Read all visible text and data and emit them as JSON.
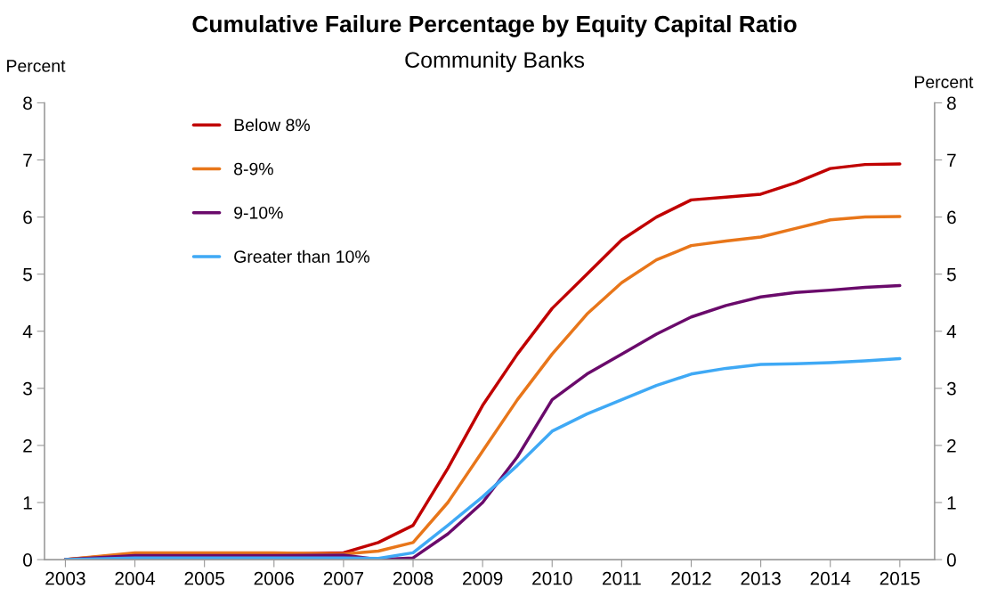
{
  "chart_data": {
    "type": "line",
    "title": "Cumulative Failure Percentage by Equity Capital Ratio",
    "subtitle": "Community Banks",
    "ylabel": "Percent",
    "y2label": "Percent",
    "x": [
      2003,
      2004,
      2005,
      2006,
      2007,
      2007.5,
      2008,
      2008.5,
      2009,
      2009.5,
      2010,
      2010.5,
      2011,
      2011.5,
      2012,
      2012.5,
      2013,
      2013.5,
      2014,
      2014.5,
      2015
    ],
    "series": [
      {
        "name": "Below 8%",
        "color": "#c00000",
        "values": [
          0,
          0.1,
          0.1,
          0.1,
          0.12,
          0.3,
          0.6,
          1.6,
          2.7,
          3.6,
          4.4,
          5.0,
          5.6,
          6.0,
          6.3,
          6.35,
          6.4,
          6.6,
          6.85,
          6.92,
          6.93
        ]
      },
      {
        "name": "8-9%",
        "color": "#e8761a",
        "values": [
          0,
          0.12,
          0.12,
          0.12,
          0.1,
          0.15,
          0.3,
          1.0,
          1.9,
          2.8,
          3.6,
          4.3,
          4.85,
          5.25,
          5.5,
          5.58,
          5.65,
          5.8,
          5.95,
          6.0,
          6.01
        ]
      },
      {
        "name": "9-10%",
        "color": "#6a0a6b",
        "values": [
          0,
          0.07,
          0.07,
          0.07,
          0.08,
          0.0,
          0.03,
          0.45,
          1.0,
          1.8,
          2.8,
          3.25,
          3.6,
          3.95,
          4.25,
          4.45,
          4.6,
          4.68,
          4.72,
          4.77,
          4.8
        ]
      },
      {
        "name": "Greater than 10%",
        "color": "#3fa9f5",
        "values": [
          0,
          0.03,
          0.03,
          0.03,
          0.03,
          0.02,
          0.12,
          0.6,
          1.1,
          1.65,
          2.25,
          2.55,
          2.8,
          3.05,
          3.25,
          3.35,
          3.42,
          3.43,
          3.45,
          3.48,
          3.52
        ]
      }
    ],
    "xlim": [
      2002.7,
      2015.5
    ],
    "xticks": [
      2003,
      2004,
      2005,
      2006,
      2007,
      2008,
      2009,
      2010,
      2011,
      2012,
      2013,
      2014,
      2015
    ],
    "ylim": [
      0,
      8
    ],
    "yticks": [
      0,
      1,
      2,
      3,
      4,
      5,
      6,
      7,
      8
    ],
    "y2lim": [
      0,
      8
    ],
    "y2ticks": [
      0,
      1,
      2,
      3,
      4,
      5,
      6,
      7,
      8
    ],
    "legend": "top left",
    "grid": false,
    "marker": "none",
    "line_style": "solid"
  }
}
